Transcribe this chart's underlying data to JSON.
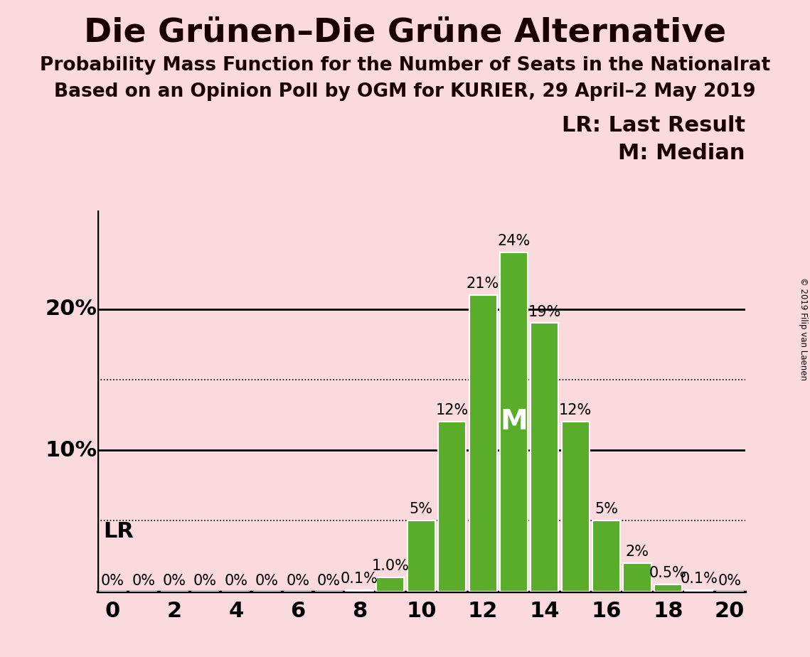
{
  "title": "Die Grünen–Die Grüne Alternative",
  "subtitle1": "Probability Mass Function for the Number of Seats in the Nationalrat",
  "subtitle2": "Based on an Opinion Poll by OGM for KURIER, 29 April–2 May 2019",
  "copyright": "© 2019 Filip van Laenen",
  "seats": [
    0,
    1,
    2,
    3,
    4,
    5,
    6,
    7,
    8,
    9,
    10,
    11,
    12,
    13,
    14,
    15,
    16,
    17,
    18,
    19,
    20
  ],
  "probabilities": [
    0.0,
    0.0,
    0.0,
    0.0,
    0.0,
    0.0,
    0.0,
    0.0,
    0.1,
    1.0,
    5.0,
    12.0,
    21.0,
    24.0,
    19.0,
    12.0,
    5.0,
    2.0,
    0.5,
    0.1,
    0.0
  ],
  "bar_labels": [
    "0%",
    "0%",
    "0%",
    "0%",
    "0%",
    "0%",
    "0%",
    "0%",
    "0.1%",
    "1.0%",
    "5%",
    "12%",
    "21%",
    "24%",
    "19%",
    "12%",
    "5%",
    "2%",
    "0.5%",
    "0.1%",
    "0%"
  ],
  "bar_color": "#5aad2a",
  "bar_edge_color": "white",
  "background_color": "#fadadd",
  "median_seat": 13,
  "xlim": [
    -0.5,
    20.5
  ],
  "ylim": [
    0,
    27
  ],
  "solid_yticks": [
    10,
    20
  ],
  "dotted_yticks": [
    5,
    15
  ],
  "title_fontsize": 34,
  "subtitle_fontsize": 19,
  "bar_label_fontsize": 15,
  "axis_tick_fontsize": 22,
  "yaxis_label_fontsize": 22,
  "legend_fontsize": 22,
  "lr_fontsize": 22,
  "median_fontsize": 28
}
